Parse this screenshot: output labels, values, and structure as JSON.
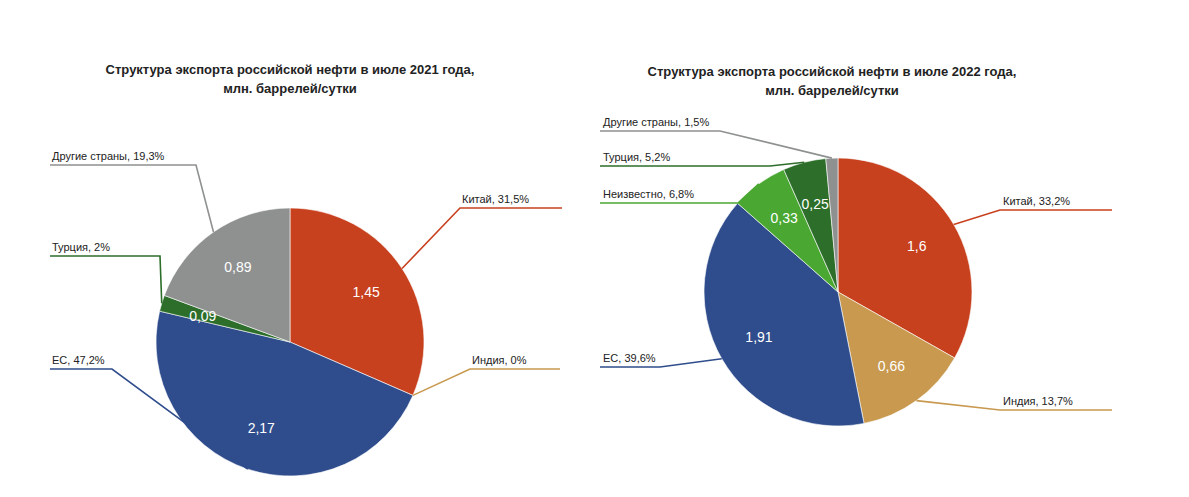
{
  "chart_data": [
    {
      "type": "pie",
      "title": "Структура экспорта российской нефти в июле 2021 года,",
      "subtitle": "млн. баррелей/сутки",
      "categories": [
        "Китай, 31,5%",
        "Индия, 0%",
        "ЕС, 47,2%",
        "Турция, 2%",
        "Другие страны, 19,3%"
      ],
      "values": [
        1.45,
        0,
        2.17,
        0.09,
        0.89
      ],
      "value_labels": [
        "1,45",
        null,
        "2,17",
        "0,09",
        "0,89"
      ],
      "colors": [
        "#c8411f",
        "#c8994f",
        "#2f4d8c",
        "#2c6e2a",
        "#8f9191"
      ],
      "data_labels": true
    },
    {
      "type": "pie",
      "title": "Структура экспорта российской нефти в июле 2022 года,",
      "subtitle": "млн. баррелей/сутки",
      "categories": [
        "Китай, 33,2%",
        "Индия, 13,7%",
        "ЕС, 39,6%",
        "Неизвестно, 6,8%",
        "Турция, 5,2%",
        "Другие страны, 1,5%"
      ],
      "values": [
        1.6,
        0.66,
        1.91,
        0.33,
        0.25,
        0.07
      ],
      "value_labels": [
        "1,6",
        "0,66",
        "1,91",
        "0,33",
        "0,25",
        null
      ],
      "colors": [
        "#c8411f",
        "#c8994f",
        "#2f4d8c",
        "#4aa832",
        "#2c6e2a",
        "#8f9191"
      ],
      "data_labels": true
    }
  ]
}
